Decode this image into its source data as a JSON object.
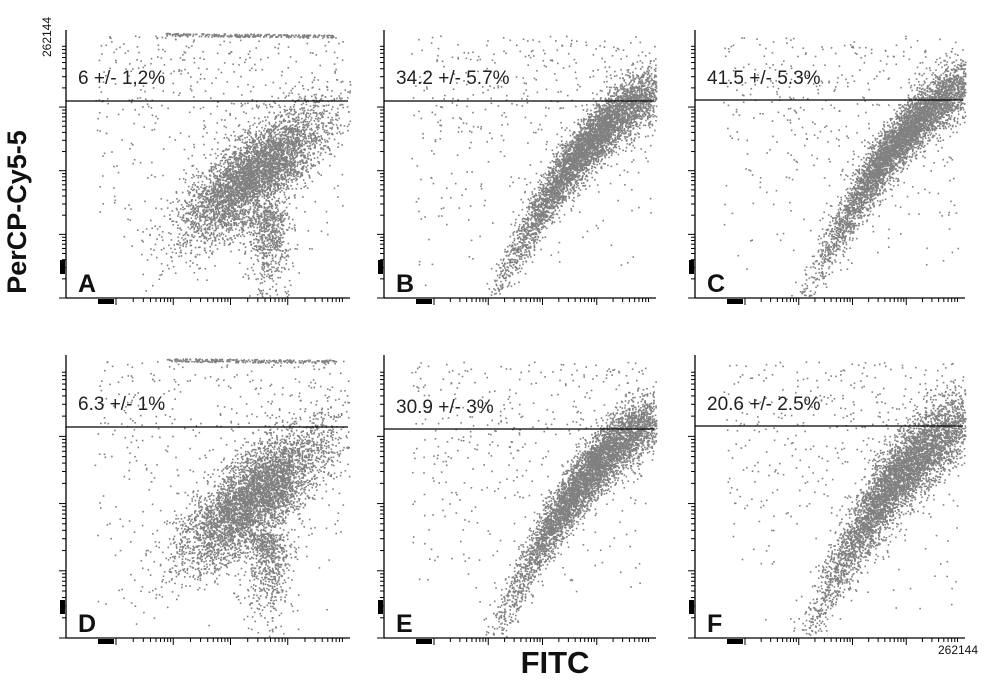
{
  "figure": {
    "ylabel": "PerCP-Cy5-5",
    "xlabel": "FITC",
    "y_top_tick_label": "262144",
    "x_right_tick_label": "262144"
  },
  "colors": {
    "dots": "#808080",
    "axes": "#000000",
    "text": "#222222"
  },
  "chart_data": [
    {
      "type": "scatter",
      "panel": "A",
      "annotation": "6 +/- 1,2%",
      "value_percent": 6.0,
      "error_percent": 1.2,
      "xlabel": "FITC",
      "ylabel": "PerCP-Cy5-5",
      "xmax": 262144,
      "ymax": 262144,
      "scale": "log"
    },
    {
      "type": "scatter",
      "panel": "B",
      "annotation": "34.2 +/- 5.7%",
      "value_percent": 34.2,
      "error_percent": 5.7,
      "xlabel": "FITC",
      "ylabel": "PerCP-Cy5-5",
      "xmax": 262144,
      "ymax": 262144,
      "scale": "log"
    },
    {
      "type": "scatter",
      "panel": "C",
      "annotation": "41.5 +/- 5.3%",
      "value_percent": 41.5,
      "error_percent": 5.3,
      "xlabel": "FITC",
      "ylabel": "PerCP-Cy5-5",
      "xmax": 262144,
      "ymax": 262144,
      "scale": "log"
    },
    {
      "type": "scatter",
      "panel": "D",
      "annotation": "6.3 +/- 1%",
      "value_percent": 6.3,
      "error_percent": 1.0,
      "xlabel": "FITC",
      "ylabel": "PerCP-Cy5-5",
      "xmax": 262144,
      "ymax": 262144,
      "scale": "log"
    },
    {
      "type": "scatter",
      "panel": "E",
      "annotation": "30.9 +/- 3%",
      "value_percent": 30.9,
      "error_percent": 3.0,
      "xlabel": "FITC",
      "ylabel": "PerCP-Cy5-5",
      "xmax": 262144,
      "ymax": 262144,
      "scale": "log"
    },
    {
      "type": "scatter",
      "panel": "F",
      "annotation": "20.6 +/- 2.5%",
      "value_percent": 20.6,
      "error_percent": 2.5,
      "xlabel": "FITC",
      "ylabel": "PerCP-Cy5-5",
      "xmax": 262144,
      "ymax": 262144,
      "scale": "log"
    }
  ]
}
